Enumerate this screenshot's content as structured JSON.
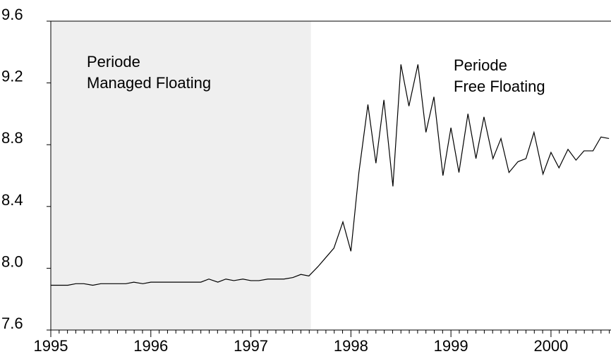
{
  "chart_data": {
    "type": "line",
    "x": [
      1995.0,
      1995.08,
      1995.17,
      1995.25,
      1995.33,
      1995.42,
      1995.5,
      1995.58,
      1995.67,
      1995.75,
      1995.83,
      1995.92,
      1996.0,
      1996.08,
      1996.17,
      1996.25,
      1996.33,
      1996.42,
      1996.5,
      1996.58,
      1996.67,
      1996.75,
      1996.83,
      1996.92,
      1997.0,
      1997.08,
      1997.17,
      1997.25,
      1997.33,
      1997.42,
      1997.5,
      1997.58,
      1997.67,
      1997.75,
      1997.83,
      1997.92,
      1998.0,
      1998.08,
      1998.17,
      1998.25,
      1998.33,
      1998.42,
      1998.5,
      1998.58,
      1998.67,
      1998.75,
      1998.83,
      1998.92,
      1999.0,
      1999.08,
      1999.17,
      1999.25,
      1999.33,
      1999.42,
      1999.5,
      1999.58,
      1999.67,
      1999.75,
      1999.83,
      1999.92,
      2000.0,
      2000.08,
      2000.17,
      2000.25,
      2000.33,
      2000.42,
      2000.5,
      2000.58
    ],
    "series": [
      {
        "color": "#000000",
        "values": [
          7.89,
          7.89,
          7.89,
          7.9,
          7.9,
          7.89,
          7.9,
          7.9,
          7.9,
          7.9,
          7.91,
          7.9,
          7.91,
          7.91,
          7.91,
          7.91,
          7.91,
          7.91,
          7.91,
          7.93,
          7.91,
          7.93,
          7.92,
          7.93,
          7.92,
          7.92,
          7.93,
          7.93,
          7.93,
          7.94,
          7.96,
          7.95,
          8.01,
          8.07,
          8.13,
          8.3,
          8.11,
          8.62,
          9.06,
          8.68,
          9.09,
          8.53,
          9.32,
          9.05,
          9.32,
          8.88,
          9.11,
          8.6,
          8.91,
          8.62,
          9.0,
          8.71,
          8.98,
          8.71,
          8.84,
          8.62,
          8.69,
          8.71,
          8.88,
          8.61,
          8.75,
          8.65,
          8.77,
          8.7,
          8.76,
          8.76,
          8.85,
          8.84
        ]
      }
    ],
    "xlim": [
      1995,
      2000.6
    ],
    "xticks": [
      1995,
      1996,
      1997,
      1998,
      1999,
      2000
    ],
    "ylim": [
      7.6,
      9.6
    ],
    "yticks": [
      {
        "value": 7.6,
        "label": "7.6"
      },
      {
        "value": 8.0,
        "label": "8.0"
      },
      {
        "value": 8.4,
        "label": "8.4"
      },
      {
        "value": 8.8,
        "label": "8.8"
      },
      {
        "value": 9.2,
        "label": "9.2"
      },
      {
        "value": 9.6,
        "label": "9.6"
      }
    ],
    "shaded_region": {
      "xlim": [
        1995,
        1997.6
      ],
      "color": "#efefef"
    },
    "annotations": [
      {
        "lines": [
          "Periode",
          "Managed Floating"
        ]
      },
      {
        "lines": [
          "Periode",
          "Free Floating"
        ]
      }
    ]
  }
}
